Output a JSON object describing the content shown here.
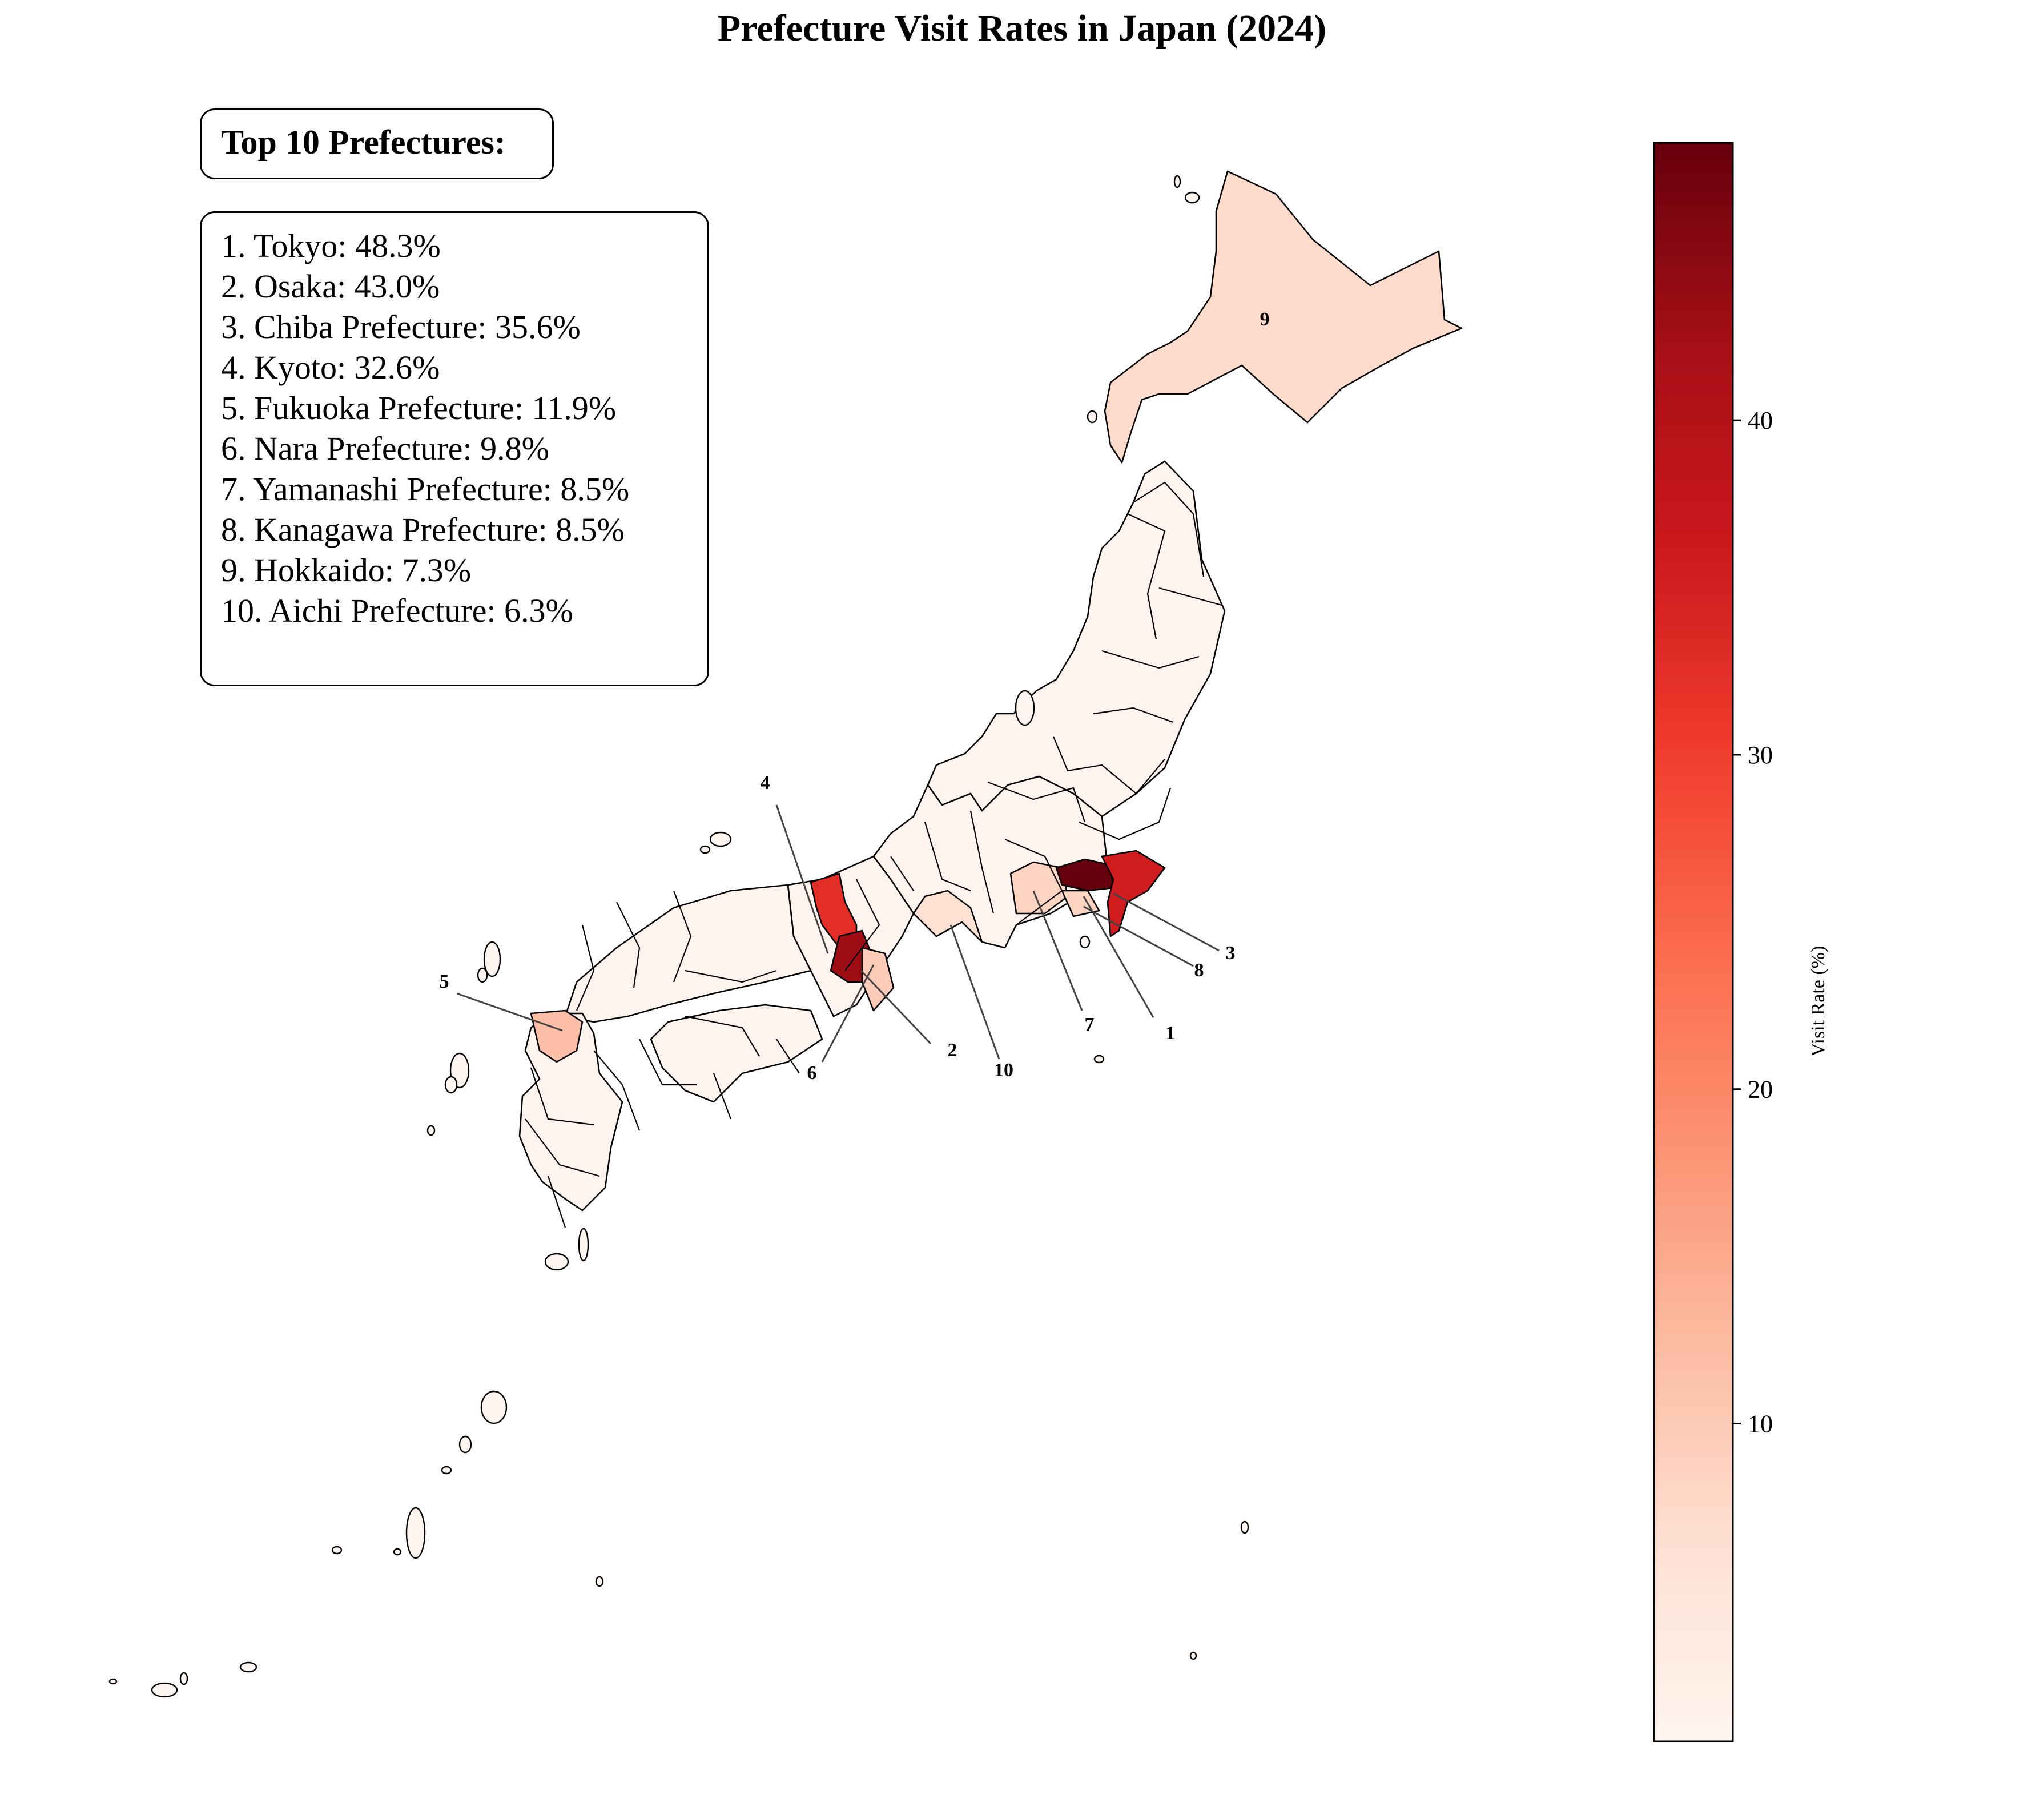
{
  "title": "Prefecture Visit Rates in Japan (2024)",
  "legend": {
    "heading": "Top 10 Prefectures:",
    "items": [
      "1. Tokyo: 48.3%",
      "2. Osaka: 43.0%",
      "3. Chiba Prefecture: 35.6%",
      "4. Kyoto: 32.6%",
      "5. Fukuoka Prefecture: 11.9%",
      "6. Nara Prefecture: 9.8%",
      "7. Yamanashi Prefecture: 8.5%",
      "8. Kanagawa Prefecture: 8.5%",
      "9. Hokkaido: 7.3%",
      "10. Aichi Prefecture: 6.3%"
    ]
  },
  "colorbar": {
    "title": "Visit Rate (%)",
    "min": 0.5,
    "max": 48.3,
    "ticks": [
      10,
      20,
      30,
      40
    ],
    "colormap": "Reds",
    "color_stops": [
      "#fff5f0",
      "#fee0d2",
      "#fcbba1",
      "#fc9272",
      "#fb6a4a",
      "#ef3b2c",
      "#cb181d",
      "#a50f15",
      "#67000d"
    ]
  },
  "chart_data": {
    "type": "choropleth",
    "value_label": "Visit Rate (%)",
    "top10": [
      {
        "rank": 1,
        "name": "Tokyo",
        "value": 48.3
      },
      {
        "rank": 2,
        "name": "Osaka",
        "value": 43.0
      },
      {
        "rank": 3,
        "name": "Chiba Prefecture",
        "value": 35.6
      },
      {
        "rank": 4,
        "name": "Kyoto",
        "value": 32.6
      },
      {
        "rank": 5,
        "name": "Fukuoka Prefecture",
        "value": 11.9
      },
      {
        "rank": 6,
        "name": "Nara Prefecture",
        "value": 9.8
      },
      {
        "rank": 7,
        "name": "Yamanashi Prefecture",
        "value": 8.5
      },
      {
        "rank": 8,
        "name": "Kanagawa Prefecture",
        "value": 8.5
      },
      {
        "rank": 9,
        "name": "Hokkaido",
        "value": 7.3
      },
      {
        "rank": 10,
        "name": "Aichi Prefecture",
        "value": 6.3
      }
    ],
    "others_value": 1.0,
    "rank_labels": [
      "1",
      "2",
      "3",
      "4",
      "5",
      "6",
      "7",
      "8",
      "9",
      "10"
    ]
  }
}
